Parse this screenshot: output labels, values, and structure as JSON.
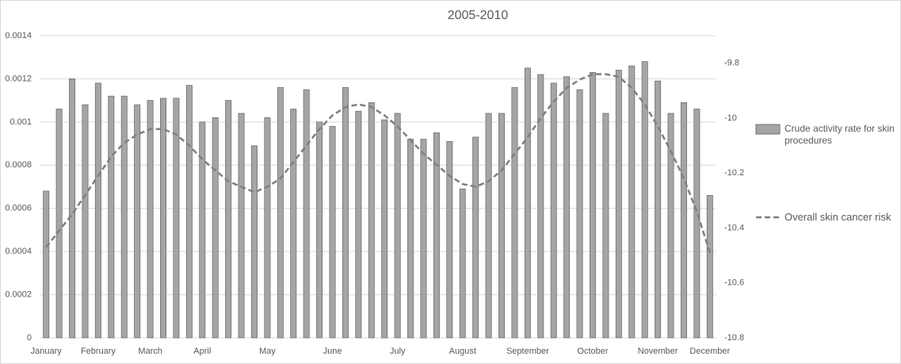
{
  "chart_data": {
    "type": "bar",
    "title": "2005-2010",
    "categories": [
      "January",
      null,
      null,
      null,
      "February",
      null,
      null,
      null,
      "March",
      null,
      null,
      null,
      "April",
      null,
      null,
      null,
      null,
      "May",
      null,
      null,
      null,
      null,
      "June",
      null,
      null,
      null,
      null,
      "July",
      null,
      null,
      null,
      null,
      "August",
      null,
      null,
      null,
      null,
      "September",
      null,
      null,
      null,
      null,
      "October",
      null,
      null,
      null,
      null,
      "November",
      null,
      null,
      null,
      "December"
    ],
    "series": [
      {
        "name": "Crude activity rate for skin procedures",
        "type": "bar",
        "color": "#a5a5a5",
        "values": [
          0.00068,
          0.00106,
          0.0012,
          0.00108,
          0.00118,
          0.00112,
          0.00112,
          0.00108,
          0.0011,
          0.00111,
          0.00111,
          0.00117,
          0.001,
          0.00102,
          0.0011,
          0.00104,
          0.00089,
          0.00102,
          0.00116,
          0.00106,
          0.00115,
          0.001,
          0.00098,
          0.00116,
          0.00105,
          0.00109,
          0.00101,
          0.00104,
          0.00092,
          0.00092,
          0.00095,
          0.00091,
          0.00069,
          0.00093,
          0.00104,
          0.00104,
          0.00116,
          0.00125,
          0.00122,
          0.00118,
          0.00121,
          0.00115,
          0.00123,
          0.00104,
          0.00124,
          0.00126,
          0.00128,
          0.00119,
          0.00104,
          0.00109,
          0.00106,
          0.00066
        ]
      },
      {
        "name": "Overall skin cancer risk",
        "type": "line",
        "axis": "y2",
        "color": "#7f7f7f",
        "values": [
          -10.47,
          -10.41,
          -10.35,
          -10.28,
          -10.21,
          -10.14,
          -10.09,
          -10.06,
          -10.04,
          -10.04,
          -10.06,
          -10.1,
          -10.15,
          -10.19,
          -10.23,
          -10.25,
          -10.27,
          -10.25,
          -10.22,
          -10.16,
          -10.1,
          -10.04,
          -9.99,
          -9.96,
          -9.95,
          -9.96,
          -9.99,
          -10.03,
          -10.08,
          -10.13,
          -10.17,
          -10.21,
          -10.24,
          -10.25,
          -10.23,
          -10.19,
          -10.13,
          -10.07,
          -10.0,
          -9.94,
          -9.89,
          -9.86,
          -9.84,
          -9.84,
          -9.85,
          -9.89,
          -9.95,
          -10.03,
          -10.12,
          -10.22,
          -10.34,
          -10.49
        ]
      }
    ],
    "ylim": [
      0,
      0.0014
    ],
    "yticks": [
      0,
      0.0002,
      0.0004,
      0.0006,
      0.0008,
      0.001,
      0.0012,
      0.0014
    ],
    "y2lim": [
      -10.8,
      -9.7
    ],
    "y2ticks": [
      -10.8,
      -10.6,
      -10.4,
      -10.2,
      -10,
      -9.8
    ],
    "grid": true,
    "legend": "right"
  }
}
